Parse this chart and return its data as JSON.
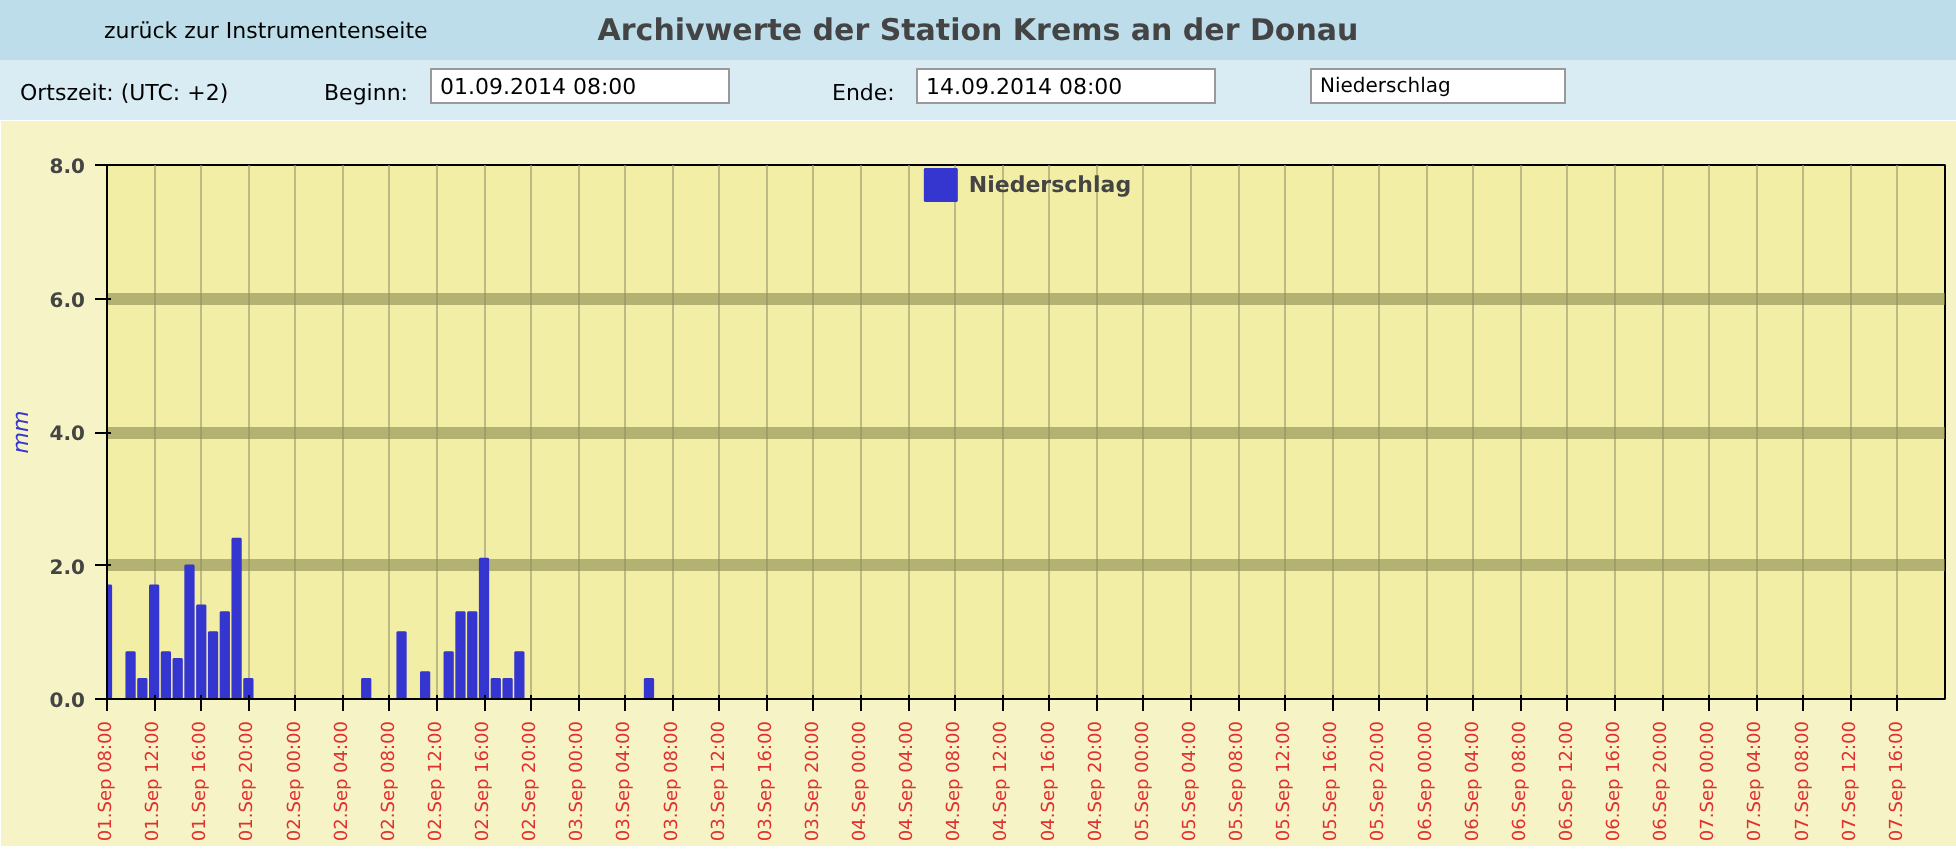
{
  "chart_data": {
    "type": "bar",
    "title": "Archivwerte der Station Krems an der Donau",
    "annotations": [
      "zurück zur Instrumentenseite",
      "Ortszeit: (UTC: +2)",
      "Beginn:",
      "01.09.2014 08:00",
      "Ende:",
      "14.09.2014 08:00",
      "Niederschlag"
    ],
    "ylabel": "mm",
    "x": [
      "2014-09-01T08:00",
      "2014-09-01T10:00",
      "2014-09-01T11:00",
      "2014-09-01T12:00",
      "2014-09-01T13:00",
      "2014-09-01T14:00",
      "2014-09-01T15:00",
      "2014-09-01T16:00",
      "2014-09-01T17:00",
      "2014-09-01T18:00",
      "2014-09-01T19:00",
      "2014-09-01T20:00",
      "2014-09-02T06:00",
      "2014-09-02T09:00",
      "2014-09-02T11:00",
      "2014-09-02T13:00",
      "2014-09-02T14:00",
      "2014-09-02T15:00",
      "2014-09-02T16:00",
      "2014-09-02T17:00",
      "2014-09-02T18:00",
      "2014-09-02T19:00",
      "2014-09-03T06:00"
    ],
    "series": [
      {
        "name": "Niederschlag",
        "color": "#3535d0",
        "values": [
          1.7,
          0.7,
          0.3,
          1.7,
          0.7,
          0.6,
          2.0,
          1.4,
          1.0,
          1.3,
          2.4,
          0.3,
          0.3,
          1.0,
          0.4,
          0.7,
          1.3,
          1.3,
          2.1,
          0.3,
          0.3,
          0.7,
          0.3
        ]
      }
    ],
    "xlim": [
      "2014-09-01T08:00",
      "2014-09-07T20:00"
    ],
    "xticks": [
      {
        "value": "2014-09-01T08:00",
        "label": "01.Sep 08:00"
      },
      {
        "value": "2014-09-01T12:00",
        "label": "01.Sep 12:00"
      },
      {
        "value": "2014-09-01T16:00",
        "label": "01.Sep 16:00"
      },
      {
        "value": "2014-09-01T20:00",
        "label": "01.Sep 20:00"
      },
      {
        "value": "2014-09-02T00:00",
        "label": "02.Sep 00:00"
      },
      {
        "value": "2014-09-02T04:00",
        "label": "02.Sep 04:00"
      },
      {
        "value": "2014-09-02T08:00",
        "label": "02.Sep 08:00"
      },
      {
        "value": "2014-09-02T12:00",
        "label": "02.Sep 12:00"
      },
      {
        "value": "2014-09-02T16:00",
        "label": "02.Sep 16:00"
      },
      {
        "value": "2014-09-02T20:00",
        "label": "02.Sep 20:00"
      },
      {
        "value": "2014-09-03T00:00",
        "label": "03.Sep 00:00"
      },
      {
        "value": "2014-09-03T04:00",
        "label": "03.Sep 04:00"
      },
      {
        "value": "2014-09-03T08:00",
        "label": "03.Sep 08:00"
      },
      {
        "value": "2014-09-03T12:00",
        "label": "03.Sep 12:00"
      },
      {
        "value": "2014-09-03T16:00",
        "label": "03.Sep 16:00"
      },
      {
        "value": "2014-09-03T20:00",
        "label": "03.Sep 20:00"
      },
      {
        "value": "2014-09-04T00:00",
        "label": "04.Sep 00:00"
      },
      {
        "value": "2014-09-04T04:00",
        "label": "04.Sep 04:00"
      },
      {
        "value": "2014-09-04T08:00",
        "label": "04.Sep 08:00"
      },
      {
        "value": "2014-09-04T12:00",
        "label": "04.Sep 12:00"
      },
      {
        "value": "2014-09-04T16:00",
        "label": "04.Sep 16:00"
      },
      {
        "value": "2014-09-04T20:00",
        "label": "04.Sep 20:00"
      },
      {
        "value": "2014-09-05T00:00",
        "label": "05.Sep 00:00"
      },
      {
        "value": "2014-09-05T04:00",
        "label": "05.Sep 04:00"
      },
      {
        "value": "2014-09-05T08:00",
        "label": "05.Sep 08:00"
      },
      {
        "value": "2014-09-05T12:00",
        "label": "05.Sep 12:00"
      },
      {
        "value": "2014-09-05T16:00",
        "label": "05.Sep 16:00"
      },
      {
        "value": "2014-09-05T20:00",
        "label": "05.Sep 20:00"
      },
      {
        "value": "2014-09-06T00:00",
        "label": "06.Sep 00:00"
      },
      {
        "value": "2014-09-06T04:00",
        "label": "06.Sep 04:00"
      },
      {
        "value": "2014-09-06T08:00",
        "label": "06.Sep 08:00"
      },
      {
        "value": "2014-09-06T12:00",
        "label": "06.Sep 12:00"
      },
      {
        "value": "2014-09-06T16:00",
        "label": "06.Sep 16:00"
      },
      {
        "value": "2014-09-06T20:00",
        "label": "06.Sep 20:00"
      },
      {
        "value": "2014-09-07T00:00",
        "label": "07.Sep 00:00"
      },
      {
        "value": "2014-09-07T04:00",
        "label": "07.Sep 04:00"
      },
      {
        "value": "2014-09-07T08:00",
        "label": "07.Sep 08:00"
      },
      {
        "value": "2014-09-07T12:00",
        "label": "07.Sep 12:00"
      },
      {
        "value": "2014-09-07T16:00",
        "label": "07.Sep 16:00"
      }
    ],
    "ylim": [
      0,
      8
    ],
    "yticks": [
      {
        "value": 0,
        "label": "0.0"
      },
      {
        "value": 2,
        "label": "2.0"
      },
      {
        "value": 4,
        "label": "4.0"
      },
      {
        "value": 6,
        "label": "6.0"
      },
      {
        "value": 8,
        "label": "8.0"
      }
    ],
    "grid": true,
    "legend": "top"
  }
}
